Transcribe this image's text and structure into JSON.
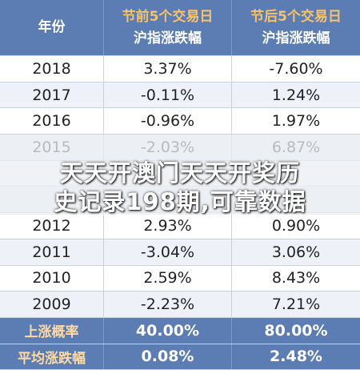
{
  "header": {
    "year": "年份",
    "col2": [
      "节前5个交易日",
      "沪指涨跌幅"
    ],
    "col3": [
      "节后5个交易日",
      "沪指涨跌幅"
    ]
  },
  "table": {
    "rows": [
      [
        "2018",
        "3.37%",
        "-7.60%"
      ],
      [
        "2017",
        "-0.11%",
        "1.24%"
      ],
      [
        "2016",
        "-0.96%",
        "1.97%"
      ],
      [
        "2015",
        "-2.03%",
        "6.87%"
      ],
      [
        "2012",
        "2.93%",
        "0.90%"
      ],
      [
        "2011",
        "-3.04%",
        "3.06%"
      ],
      [
        "2010",
        "2.59%",
        "8.43%"
      ],
      [
        "2009",
        "-2.23%",
        "7.21%"
      ]
    ]
  },
  "footer": {
    "rows": [
      [
        "上涨概率",
        "40.00%",
        "80.00%"
      ],
      [
        "平均涨跌幅",
        "0.08%",
        "2.48%"
      ]
    ]
  },
  "overlay": [
    "天天开澳门天天开奖历",
    "史记录198期,可靠数据"
  ]
}
